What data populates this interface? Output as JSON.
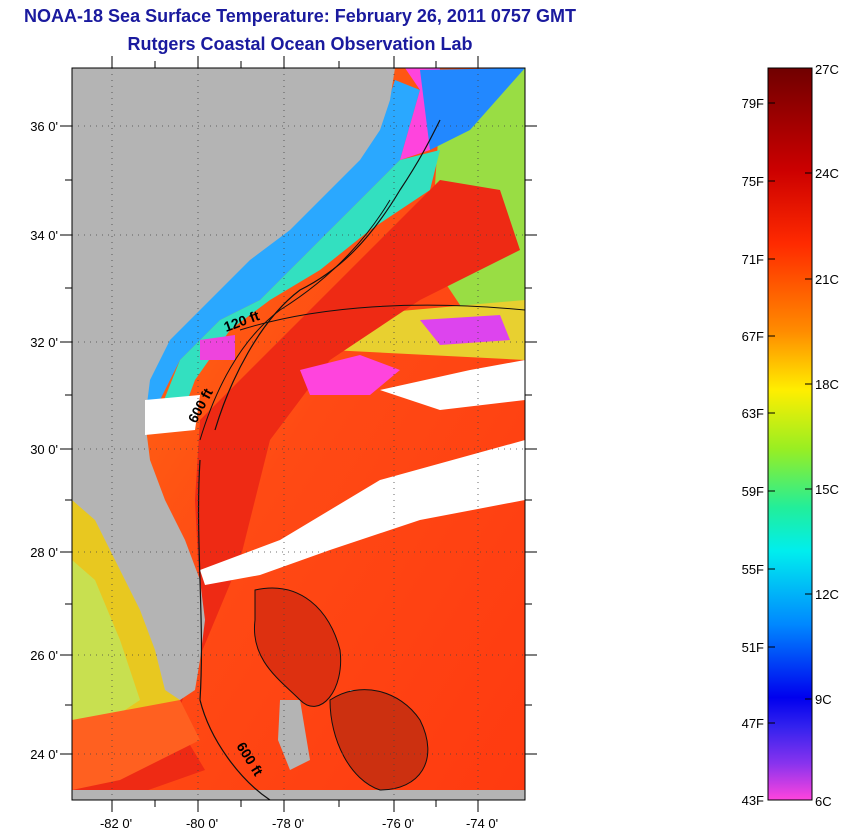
{
  "header": {
    "title": "NOAA-18 Sea Surface Temperature:  February 26, 2011 0757 GMT",
    "subtitle": "Rutgers Coastal Ocean Observation Lab"
  },
  "map": {
    "lat_labels": [
      "36 0'",
      "34 0'",
      "32 0'",
      "30 0'",
      "28 0'",
      "26 0'",
      "24 0'"
    ],
    "lon_labels": [
      "-82 0'",
      "-80 0'",
      "-78 0'",
      "-76 0'",
      "-74 0'"
    ],
    "contour_labels": [
      "120 ft",
      "600 ft",
      "600 ft"
    ],
    "colors": {
      "land": "#b4b4b4",
      "cloud": "#ffffff",
      "gulf_stream": "#ee2a14",
      "shelf": "#2aa8ff"
    }
  },
  "colorbar": {
    "fahrenheit_labels": [
      "79F",
      "75F",
      "71F",
      "67F",
      "63F",
      "59F",
      "55F",
      "51F",
      "47F",
      "43F"
    ],
    "celsius_labels": [
      "27C",
      "24C",
      "21C",
      "18C",
      "15C",
      "12C",
      "9C",
      "6C"
    ],
    "gradient_colors": [
      "#700000",
      "#cc0000",
      "#ff3300",
      "#ff8800",
      "#ffee00",
      "#88ee22",
      "#22ee99",
      "#00eeee",
      "#0088ff",
      "#0000ee",
      "#7733ee",
      "#ff44dd"
    ]
  }
}
